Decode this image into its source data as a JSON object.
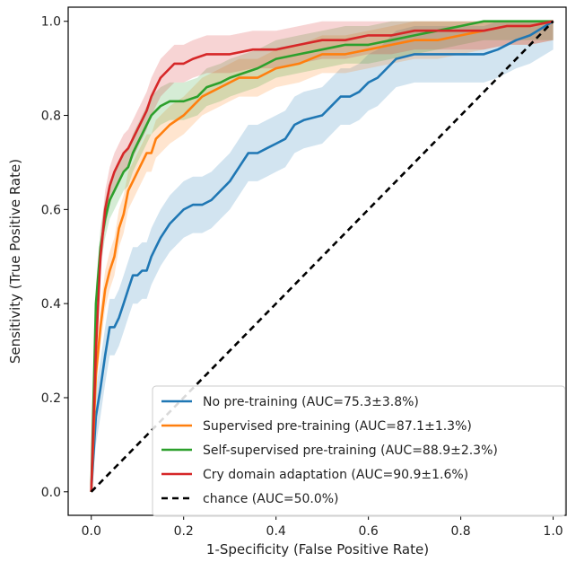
{
  "chart_data": {
    "type": "line",
    "xlabel": "1-Specificity (False Positive Rate)",
    "ylabel": "Sensitivity (True Positive Rate)",
    "xlim": [
      -0.05,
      1.03
    ],
    "ylim": [
      -0.05,
      1.03
    ],
    "xticks": [
      "0.0",
      "0.2",
      "0.4",
      "0.6",
      "0.8",
      "1.0"
    ],
    "yticks": [
      "0.0",
      "0.2",
      "0.4",
      "0.6",
      "0.8",
      "1.0"
    ],
    "grid": false,
    "legend_position": "lower-right",
    "series": [
      {
        "name": "No pre-training (AUC=75.3±3.8%)",
        "color": "#1f77b4",
        "band": 0.06,
        "x": [
          0,
          0.01,
          0.02,
          0.03,
          0.04,
          0.05,
          0.06,
          0.07,
          0.08,
          0.09,
          0.1,
          0.11,
          0.12,
          0.13,
          0.14,
          0.15,
          0.17,
          0.19,
          0.2,
          0.22,
          0.24,
          0.26,
          0.28,
          0.3,
          0.32,
          0.34,
          0.36,
          0.38,
          0.4,
          0.42,
          0.44,
          0.46,
          0.5,
          0.52,
          0.54,
          0.56,
          0.58,
          0.6,
          0.62,
          0.64,
          0.66,
          0.7,
          0.75,
          0.8,
          0.85,
          0.88,
          0.92,
          0.95,
          1.0
        ],
        "y": [
          0,
          0.16,
          0.22,
          0.29,
          0.35,
          0.35,
          0.37,
          0.4,
          0.43,
          0.46,
          0.46,
          0.47,
          0.47,
          0.5,
          0.52,
          0.54,
          0.57,
          0.59,
          0.6,
          0.61,
          0.61,
          0.62,
          0.64,
          0.66,
          0.69,
          0.72,
          0.72,
          0.73,
          0.74,
          0.75,
          0.78,
          0.79,
          0.8,
          0.82,
          0.84,
          0.84,
          0.85,
          0.87,
          0.88,
          0.9,
          0.92,
          0.93,
          0.93,
          0.93,
          0.93,
          0.94,
          0.96,
          0.97,
          1.0
        ]
      },
      {
        "name": "Supervised pre-training (AUC=87.1±1.3%)",
        "color": "#ff7f0e",
        "band": 0.04,
        "x": [
          0,
          0.01,
          0.02,
          0.03,
          0.04,
          0.05,
          0.06,
          0.07,
          0.08,
          0.09,
          0.1,
          0.11,
          0.12,
          0.13,
          0.14,
          0.15,
          0.17,
          0.2,
          0.22,
          0.24,
          0.26,
          0.28,
          0.3,
          0.32,
          0.34,
          0.36,
          0.38,
          0.4,
          0.45,
          0.5,
          0.55,
          0.6,
          0.65,
          0.7,
          0.75,
          0.8,
          0.85,
          0.9,
          0.95,
          1.0
        ],
        "y": [
          0,
          0.25,
          0.35,
          0.43,
          0.47,
          0.5,
          0.56,
          0.59,
          0.64,
          0.66,
          0.68,
          0.7,
          0.72,
          0.72,
          0.75,
          0.76,
          0.78,
          0.8,
          0.82,
          0.84,
          0.85,
          0.86,
          0.87,
          0.88,
          0.88,
          0.88,
          0.89,
          0.9,
          0.91,
          0.93,
          0.93,
          0.94,
          0.95,
          0.96,
          0.96,
          0.97,
          0.98,
          0.99,
          0.99,
          1.0
        ]
      },
      {
        "name": "Self-supervised pre-training (AUC=88.9±2.3%)",
        "color": "#2ca02c",
        "band": 0.04,
        "x": [
          0,
          0.01,
          0.02,
          0.03,
          0.04,
          0.05,
          0.06,
          0.07,
          0.08,
          0.09,
          0.1,
          0.11,
          0.12,
          0.13,
          0.14,
          0.15,
          0.17,
          0.2,
          0.23,
          0.25,
          0.28,
          0.3,
          0.33,
          0.36,
          0.4,
          0.45,
          0.5,
          0.55,
          0.6,
          0.65,
          0.7,
          0.75,
          0.8,
          0.85,
          0.9,
          0.95,
          1.0
        ],
        "y": [
          0,
          0.4,
          0.52,
          0.58,
          0.62,
          0.64,
          0.66,
          0.68,
          0.69,
          0.72,
          0.74,
          0.76,
          0.78,
          0.8,
          0.81,
          0.82,
          0.83,
          0.83,
          0.84,
          0.86,
          0.87,
          0.88,
          0.89,
          0.9,
          0.92,
          0.93,
          0.94,
          0.95,
          0.95,
          0.96,
          0.97,
          0.98,
          0.99,
          1.0,
          1.0,
          1.0,
          1.0
        ]
      },
      {
        "name": "Cry domain adaptation (AUC=90.9±1.6%)",
        "color": "#d62728",
        "band": 0.04,
        "x": [
          0,
          0.01,
          0.02,
          0.03,
          0.04,
          0.05,
          0.06,
          0.07,
          0.08,
          0.09,
          0.1,
          0.11,
          0.12,
          0.13,
          0.14,
          0.15,
          0.16,
          0.18,
          0.2,
          0.22,
          0.25,
          0.3,
          0.35,
          0.4,
          0.45,
          0.5,
          0.55,
          0.6,
          0.65,
          0.7,
          0.8,
          0.85,
          0.9,
          0.95,
          1.0
        ],
        "y": [
          0,
          0.3,
          0.5,
          0.6,
          0.65,
          0.68,
          0.7,
          0.72,
          0.73,
          0.75,
          0.77,
          0.79,
          0.81,
          0.84,
          0.86,
          0.88,
          0.89,
          0.91,
          0.91,
          0.92,
          0.93,
          0.93,
          0.94,
          0.94,
          0.95,
          0.96,
          0.96,
          0.97,
          0.97,
          0.98,
          0.98,
          0.98,
          0.99,
          0.99,
          1.0
        ]
      },
      {
        "name": "chance (AUC=50.0%)",
        "color": "#000000",
        "dashed": true,
        "band": 0,
        "x": [
          0,
          1.0
        ],
        "y": [
          0,
          1.0
        ]
      }
    ]
  }
}
